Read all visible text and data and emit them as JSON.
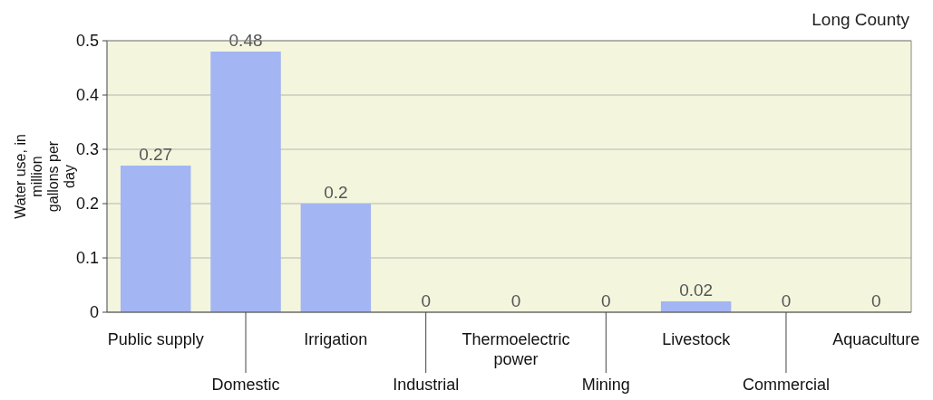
{
  "chart_data": {
    "type": "bar",
    "title": "Long County",
    "ylabel": "Water use, in million gallons per day",
    "categories": [
      "Public supply",
      "Domestic",
      "Irrigation",
      "Industrial",
      "Thermoelectric power",
      "Mining",
      "Livestock",
      "Commercial",
      "Aquaculture"
    ],
    "values": [
      0.27,
      0.48,
      0.2,
      0,
      0,
      0,
      0.02,
      0,
      0
    ],
    "color": "#a3b5f2",
    "ylim": [
      0,
      0.5
    ],
    "yticks": [
      0,
      0.1,
      0.2,
      0.3,
      0.4,
      0.5
    ],
    "grid": "y",
    "data_labels": true
  }
}
